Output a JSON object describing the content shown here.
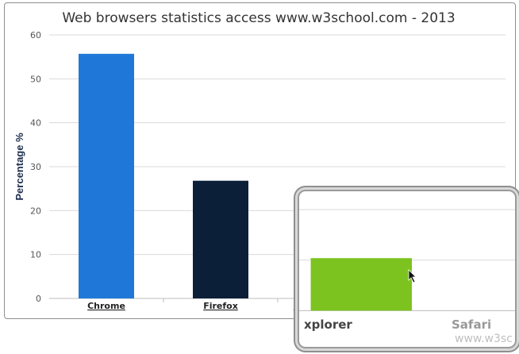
{
  "chart_data": {
    "type": "bar",
    "title": "Web browsers statistics access www.w3school.com - 2013",
    "ylabel": "Percentage %",
    "xlabel": "",
    "categories": [
      "Chrome",
      "Firefox",
      "Internet Explorer",
      "Safari"
    ],
    "values": [
      55.7,
      26.8,
      10.4,
      2.8
    ],
    "ylim": [
      0,
      60
    ],
    "yticks": [
      0,
      10,
      20,
      30,
      40,
      50,
      60
    ],
    "grid": true,
    "colors": [
      "#1f78d8",
      "#0b1f38",
      "#7cc31f",
      "#9c0808"
    ]
  },
  "overlay": {
    "magnifier_watermark": "www.w3sc",
    "zoomed_x_labels": [
      "xplorer",
      "Safari"
    ]
  }
}
